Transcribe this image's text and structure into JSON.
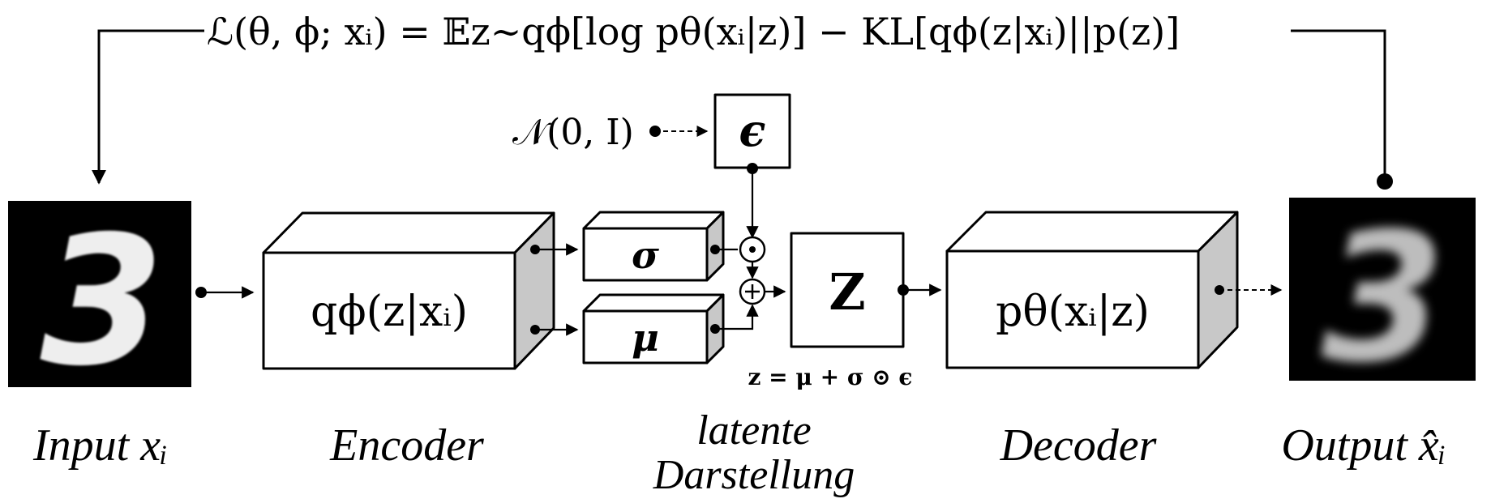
{
  "loss_formula": "ℒ(θ, ϕ; xᵢ) = 𝔼z∼qϕ[log pθ(xᵢ|z)] − KL[qϕ(z|xᵢ)||p(z)]",
  "noise_source": "𝒩(0, I)",
  "epsilon_symbol": "ϵ",
  "encoder_formula": "qϕ(z|xᵢ)",
  "sigma_symbol": "σ",
  "mu_symbol": "μ",
  "multiply_symbol": "⊙",
  "add_symbol": "⊕",
  "z_symbol": "Z",
  "reparam_formula": "z = μ + σ ⊙ ϵ",
  "decoder_formula": "pθ(xᵢ|z)",
  "labels": {
    "input": "Input xᵢ",
    "encoder": "Encoder",
    "latent_line1": "latente",
    "latent_line2": "Darstellung",
    "decoder": "Decoder",
    "output": "Output x̂ᵢ"
  },
  "input_digit": "3",
  "output_digit": "3",
  "colors": {
    "side_face": "#c8c8c8",
    "image_bg": "#000000",
    "digit_input": "#eeeeee",
    "digit_output": "#bdbdbd"
  }
}
